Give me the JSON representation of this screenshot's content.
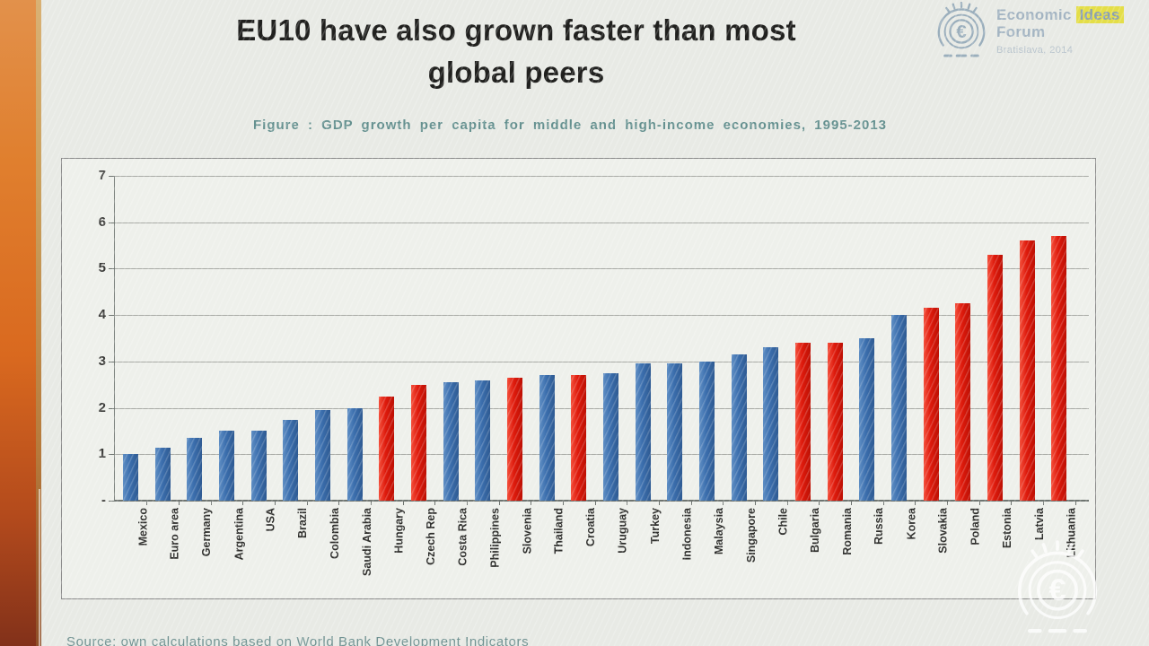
{
  "slide": {
    "title_line1": "EU10 have also grown faster than most",
    "title_line2": "global peers",
    "caption": "Figure : GDP growth per capita for middle and high-income economies,  1995-2013",
    "source": "Source: own calculations based on World Bank Development Indicators"
  },
  "logo": {
    "word1": "Economic",
    "word2": "Ideas",
    "line2": "Forum",
    "line3": "Bratislava, 2014",
    "emblem_icon": "euro-circle-icon",
    "text_color": "#a3b4c2",
    "highlight_bg": "#e4de48"
  },
  "watermark": {
    "emblem_icon": "euro-circle-icon",
    "color": "#ffffff"
  },
  "chart_data": {
    "type": "bar",
    "title": "",
    "xlabel": "",
    "ylabel": "",
    "categories": [
      "Mexico",
      "Euro area",
      "Germany",
      "Argentina",
      "USA",
      "Brazil",
      "Colombia",
      "Saudi Arabia",
      "Hungary",
      "Czech Rep",
      "Costa Rica",
      "Philippines",
      "Slovenia",
      "Thailand",
      "Croatia",
      "Uruguay",
      "Turkey",
      "Indonesia",
      "Malaysia",
      "Singapore",
      "Chile",
      "Bulgaria",
      "Romania",
      "Russia",
      "Korea",
      "Slovakia",
      "Poland",
      "Estonia",
      "Latvia",
      "Lithuania"
    ],
    "values": [
      1.0,
      1.15,
      1.35,
      1.5,
      1.5,
      1.75,
      1.95,
      2.0,
      2.25,
      2.5,
      2.55,
      2.6,
      2.65,
      2.7,
      2.7,
      2.75,
      2.95,
      2.95,
      3.0,
      3.15,
      3.3,
      3.4,
      3.4,
      3.5,
      4.0,
      4.15,
      4.25,
      5.3,
      5.6,
      5.7
    ],
    "highlighted_categories": [
      "Hungary",
      "Czech Rep",
      "Slovenia",
      "Croatia",
      "Bulgaria",
      "Romania",
      "Slovakia",
      "Poland",
      "Estonia",
      "Latvia",
      "Lithuania"
    ],
    "highlight_color": "#de1a0c",
    "bar_color": "#3b6ead",
    "ylim": [
      0,
      7
    ],
    "ytick_values": [
      7,
      6,
      5,
      4,
      3,
      2,
      1,
      0
    ],
    "ytick_labels": [
      "7",
      "6",
      "5",
      "4",
      "3",
      "2",
      "1",
      "-"
    ],
    "grid": true,
    "legend": null
  }
}
